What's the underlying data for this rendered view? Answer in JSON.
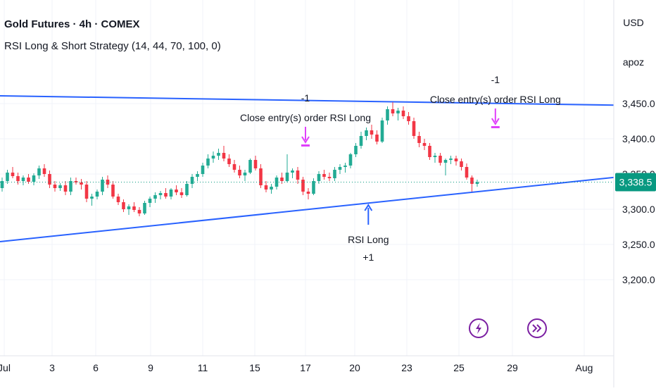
{
  "legend": {
    "title": "Gold Futures · 4h · COMEX",
    "strategy": "RSI Long & Short Strategy (14, 44, 70, 100, 0)"
  },
  "scale": {
    "currency": "USD",
    "mode": "apoz"
  },
  "price_label": "3,338.5",
  "event_icons": [
    "lightning-bolt-icon",
    "fast-forward-icon"
  ],
  "colors": {
    "up": "#22ab94",
    "down": "#f23645",
    "trendline": "#2962ff",
    "price_dotted": "#089981",
    "close_arrow": "#e040fb",
    "long_arrow": "#2962ff",
    "icon_ring": "#7b1fa2"
  },
  "chart_data": {
    "type": "candlestick",
    "x_ticks": [
      "Jul",
      "3",
      "6",
      "9",
      "11",
      "15",
      "17",
      "20",
      "23",
      "25",
      "29",
      "Aug"
    ],
    "y_ticks": [
      "3,450.0",
      "3,400.0",
      "3,350.0",
      "3,300.0",
      "3,250.0",
      "3,200.0"
    ],
    "ylim": [
      3190,
      3490
    ],
    "last_price": 3338.5,
    "annotations": [
      {
        "id": "close1",
        "lines": [
          "-1",
          "Close entry(s) order RSI Long"
        ],
        "direction": "down",
        "day": 13,
        "price": 3389
      },
      {
        "id": "close2",
        "lines": [
          "-1",
          "Close entry(s) order RSI Long"
        ],
        "direction": "down",
        "day": 21.3,
        "price": 3415
      },
      {
        "id": "long1",
        "lines": [
          "RSI Long",
          "+1"
        ],
        "direction": "up",
        "day": 16,
        "price": 3308
      }
    ],
    "trendlines": [
      {
        "name": "upper",
        "points": [
          [
            0.0,
            3461
          ],
          [
            33.5,
            3444
          ]
        ]
      },
      {
        "name": "lower",
        "points": [
          [
            0.0,
            3254
          ],
          [
            33.5,
            3371
          ]
        ]
      }
    ],
    "candles": [
      {
        "o": 3330,
        "h": 3345,
        "l": 3325,
        "c": 3340
      },
      {
        "o": 3340,
        "h": 3356,
        "l": 3336,
        "c": 3352
      },
      {
        "o": 3352,
        "h": 3360,
        "l": 3344,
        "c": 3347
      },
      {
        "o": 3347,
        "h": 3352,
        "l": 3335,
        "c": 3340
      },
      {
        "o": 3340,
        "h": 3348,
        "l": 3334,
        "c": 3345
      },
      {
        "o": 3345,
        "h": 3350,
        "l": 3336,
        "c": 3339
      },
      {
        "o": 3339,
        "h": 3351,
        "l": 3334,
        "c": 3348
      },
      {
        "o": 3348,
        "h": 3362,
        "l": 3343,
        "c": 3358
      },
      {
        "o": 3358,
        "h": 3364,
        "l": 3346,
        "c": 3350
      },
      {
        "o": 3350,
        "h": 3355,
        "l": 3330,
        "c": 3335
      },
      {
        "o": 3335,
        "h": 3340,
        "l": 3325,
        "c": 3330
      },
      {
        "o": 3330,
        "h": 3337,
        "l": 3326,
        "c": 3334
      },
      {
        "o": 3334,
        "h": 3340,
        "l": 3320,
        "c": 3325
      },
      {
        "o": 3325,
        "h": 3345,
        "l": 3320,
        "c": 3340
      },
      {
        "o": 3340,
        "h": 3345,
        "l": 3335,
        "c": 3338
      },
      {
        "o": 3338,
        "h": 3343,
        "l": 3328,
        "c": 3335
      },
      {
        "o": 3335,
        "h": 3340,
        "l": 3310,
        "c": 3315
      },
      {
        "o": 3315,
        "h": 3322,
        "l": 3305,
        "c": 3318
      },
      {
        "o": 3318,
        "h": 3328,
        "l": 3314,
        "c": 3325
      },
      {
        "o": 3325,
        "h": 3346,
        "l": 3320,
        "c": 3342
      },
      {
        "o": 3342,
        "h": 3348,
        "l": 3330,
        "c": 3335
      },
      {
        "o": 3335,
        "h": 3340,
        "l": 3315,
        "c": 3318
      },
      {
        "o": 3318,
        "h": 3322,
        "l": 3306,
        "c": 3310
      },
      {
        "o": 3310,
        "h": 3314,
        "l": 3296,
        "c": 3300
      },
      {
        "o": 3300,
        "h": 3307,
        "l": 3292,
        "c": 3304
      },
      {
        "o": 3304,
        "h": 3310,
        "l": 3296,
        "c": 3299
      },
      {
        "o": 3299,
        "h": 3303,
        "l": 3290,
        "c": 3294
      },
      {
        "o": 3294,
        "h": 3312,
        "l": 3292,
        "c": 3309
      },
      {
        "o": 3309,
        "h": 3318,
        "l": 3303,
        "c": 3315
      },
      {
        "o": 3315,
        "h": 3324,
        "l": 3309,
        "c": 3320
      },
      {
        "o": 3320,
        "h": 3326,
        "l": 3314,
        "c": 3323
      },
      {
        "o": 3323,
        "h": 3330,
        "l": 3315,
        "c": 3318
      },
      {
        "o": 3318,
        "h": 3330,
        "l": 3314,
        "c": 3328
      },
      {
        "o": 3328,
        "h": 3334,
        "l": 3320,
        "c": 3324
      },
      {
        "o": 3324,
        "h": 3330,
        "l": 3316,
        "c": 3320
      },
      {
        "o": 3320,
        "h": 3340,
        "l": 3318,
        "c": 3336
      },
      {
        "o": 3336,
        "h": 3350,
        "l": 3330,
        "c": 3346
      },
      {
        "o": 3346,
        "h": 3354,
        "l": 3340,
        "c": 3350
      },
      {
        "o": 3350,
        "h": 3366,
        "l": 3346,
        "c": 3362
      },
      {
        "o": 3362,
        "h": 3378,
        "l": 3358,
        "c": 3372
      },
      {
        "o": 3372,
        "h": 3382,
        "l": 3366,
        "c": 3376
      },
      {
        "o": 3376,
        "h": 3386,
        "l": 3370,
        "c": 3380
      },
      {
        "o": 3380,
        "h": 3390,
        "l": 3368,
        "c": 3372
      },
      {
        "o": 3372,
        "h": 3378,
        "l": 3360,
        "c": 3364
      },
      {
        "o": 3364,
        "h": 3370,
        "l": 3352,
        "c": 3356
      },
      {
        "o": 3356,
        "h": 3362,
        "l": 3344,
        "c": 3348
      },
      {
        "o": 3348,
        "h": 3356,
        "l": 3340,
        "c": 3352
      },
      {
        "o": 3352,
        "h": 3372,
        "l": 3350,
        "c": 3370
      },
      {
        "o": 3370,
        "h": 3376,
        "l": 3355,
        "c": 3358
      },
      {
        "o": 3358,
        "h": 3364,
        "l": 3330,
        "c": 3334
      },
      {
        "o": 3334,
        "h": 3340,
        "l": 3324,
        "c": 3328
      },
      {
        "o": 3328,
        "h": 3336,
        "l": 3322,
        "c": 3332
      },
      {
        "o": 3332,
        "h": 3348,
        "l": 3328,
        "c": 3345
      },
      {
        "o": 3345,
        "h": 3352,
        "l": 3336,
        "c": 3340
      },
      {
        "o": 3340,
        "h": 3378,
        "l": 3338,
        "c": 3352
      },
      {
        "o": 3352,
        "h": 3358,
        "l": 3344,
        "c": 3355
      },
      {
        "o": 3355,
        "h": 3360,
        "l": 3336,
        "c": 3342
      },
      {
        "o": 3342,
        "h": 3346,
        "l": 3320,
        "c": 3325
      },
      {
        "o": 3325,
        "h": 3330,
        "l": 3314,
        "c": 3322
      },
      {
        "o": 3322,
        "h": 3344,
        "l": 3320,
        "c": 3340
      },
      {
        "o": 3340,
        "h": 3354,
        "l": 3336,
        "c": 3350
      },
      {
        "o": 3350,
        "h": 3356,
        "l": 3342,
        "c": 3346
      },
      {
        "o": 3346,
        "h": 3352,
        "l": 3340,
        "c": 3344
      },
      {
        "o": 3344,
        "h": 3360,
        "l": 3340,
        "c": 3356
      },
      {
        "o": 3356,
        "h": 3364,
        "l": 3350,
        "c": 3360
      },
      {
        "o": 3360,
        "h": 3366,
        "l": 3352,
        "c": 3362
      },
      {
        "o": 3362,
        "h": 3380,
        "l": 3358,
        "c": 3378
      },
      {
        "o": 3378,
        "h": 3394,
        "l": 3374,
        "c": 3390
      },
      {
        "o": 3390,
        "h": 3410,
        "l": 3386,
        "c": 3404
      },
      {
        "o": 3404,
        "h": 3416,
        "l": 3398,
        "c": 3412
      },
      {
        "o": 3412,
        "h": 3420,
        "l": 3400,
        "c": 3406
      },
      {
        "o": 3406,
        "h": 3412,
        "l": 3392,
        "c": 3396
      },
      {
        "o": 3396,
        "h": 3430,
        "l": 3394,
        "c": 3426
      },
      {
        "o": 3426,
        "h": 3446,
        "l": 3420,
        "c": 3442
      },
      {
        "o": 3442,
        "h": 3452,
        "l": 3432,
        "c": 3436
      },
      {
        "o": 3436,
        "h": 3444,
        "l": 3426,
        "c": 3440
      },
      {
        "o": 3440,
        "h": 3446,
        "l": 3428,
        "c": 3432
      },
      {
        "o": 3432,
        "h": 3438,
        "l": 3420,
        "c": 3425
      },
      {
        "o": 3425,
        "h": 3430,
        "l": 3400,
        "c": 3404
      },
      {
        "o": 3404,
        "h": 3410,
        "l": 3388,
        "c": 3394
      },
      {
        "o": 3394,
        "h": 3400,
        "l": 3384,
        "c": 3390
      },
      {
        "o": 3390,
        "h": 3394,
        "l": 3370,
        "c": 3374
      },
      {
        "o": 3374,
        "h": 3380,
        "l": 3366,
        "c": 3376
      },
      {
        "o": 3376,
        "h": 3380,
        "l": 3362,
        "c": 3366
      },
      {
        "o": 3366,
        "h": 3372,
        "l": 3348,
        "c": 3370
      },
      {
        "o": 3370,
        "h": 3376,
        "l": 3364,
        "c": 3372
      },
      {
        "o": 3372,
        "h": 3376,
        "l": 3362,
        "c": 3368
      },
      {
        "o": 3368,
        "h": 3372,
        "l": 3355,
        "c": 3360
      },
      {
        "o": 3360,
        "h": 3365,
        "l": 3342,
        "c": 3345
      },
      {
        "o": 3345,
        "h": 3348,
        "l": 3325,
        "c": 3336
      },
      {
        "o": 3336,
        "h": 3342,
        "l": 3332,
        "c": 3338.5
      }
    ]
  }
}
